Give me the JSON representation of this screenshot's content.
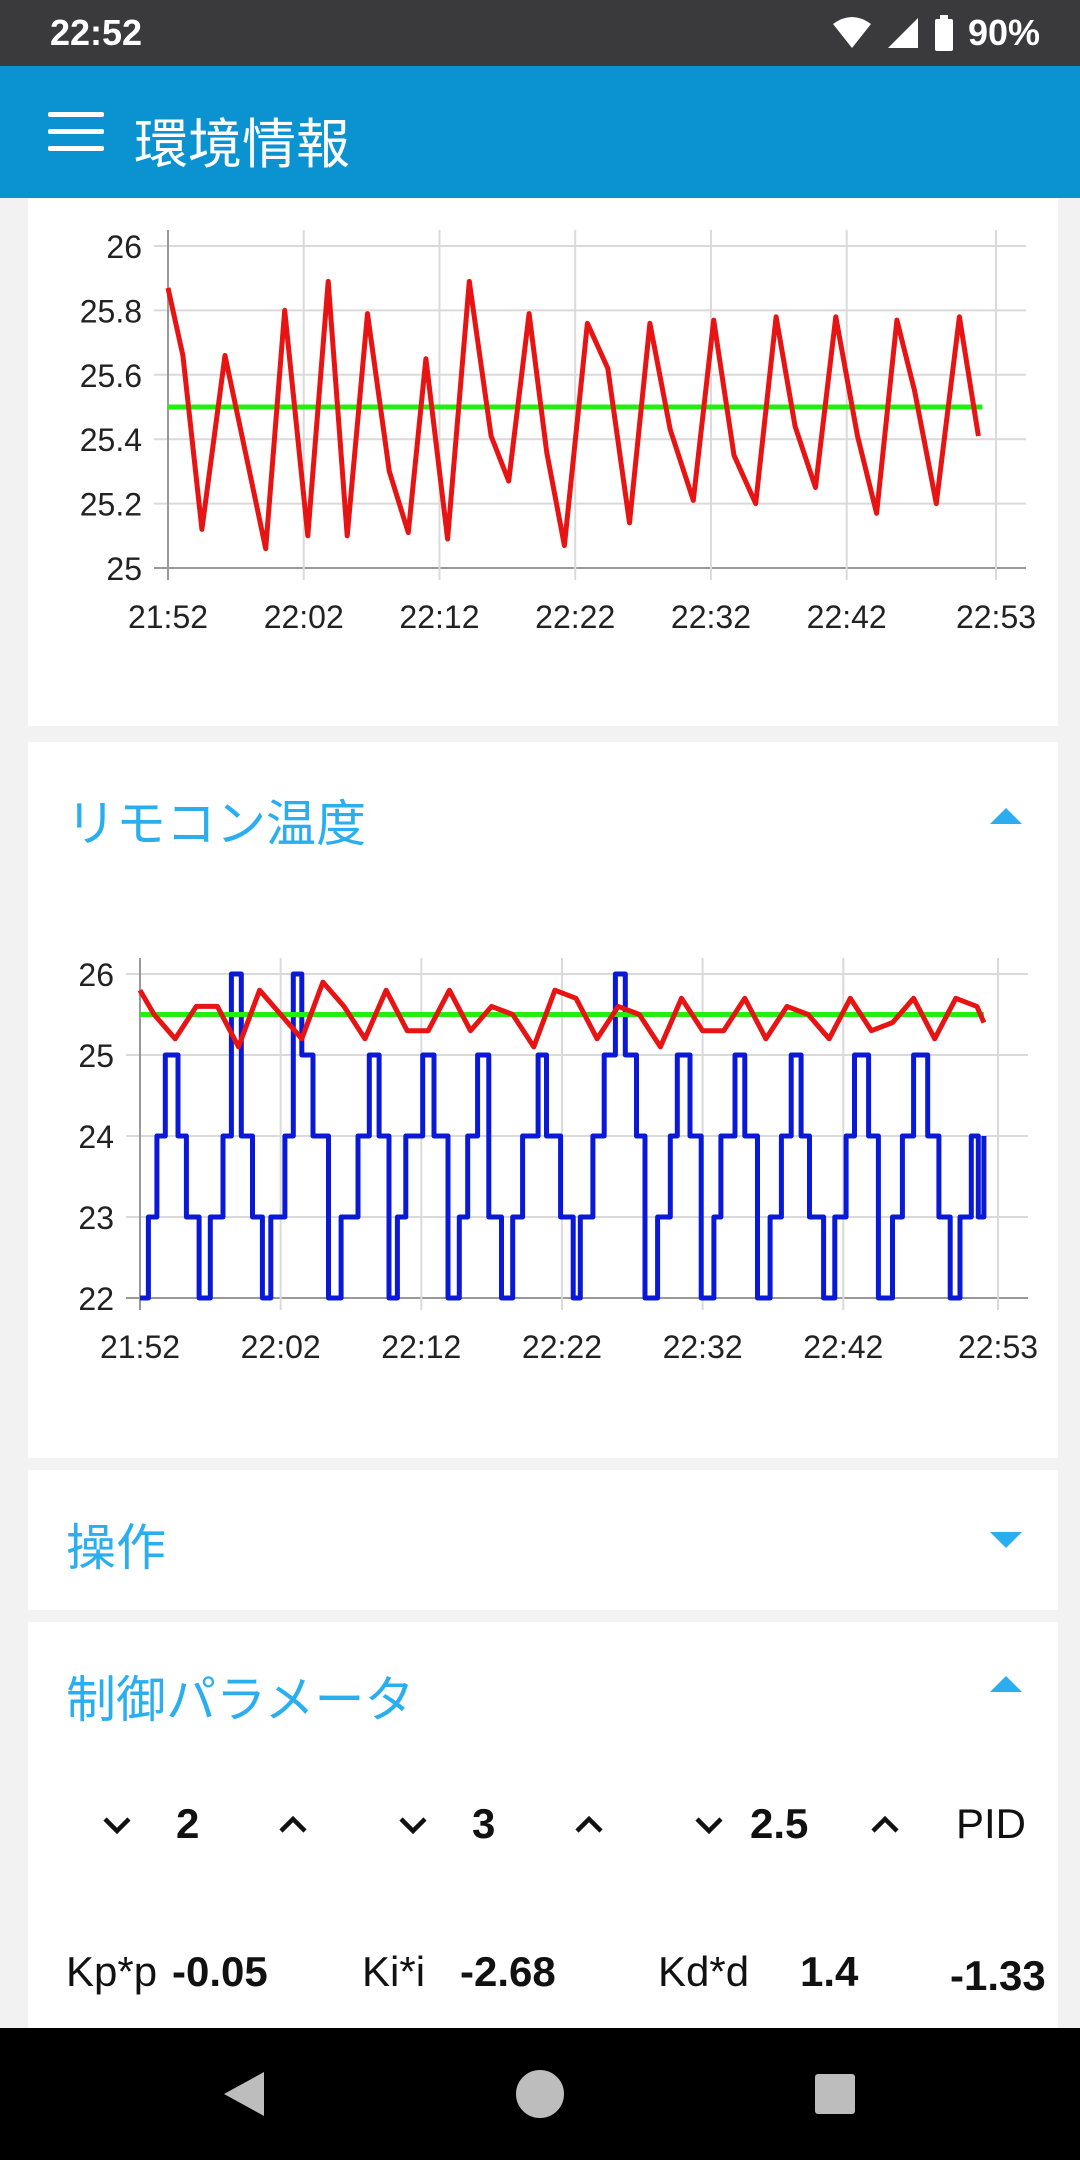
{
  "status_bar": {
    "time": "22:52",
    "battery": "90%",
    "icons": [
      "wifi-icon",
      "signal-icon",
      "battery-icon"
    ]
  },
  "app_bar": {
    "title": "環境情報",
    "menu_icon": "hamburger-menu-icon"
  },
  "cards": {
    "room_temp": {
      "title": ""
    },
    "remote_temp": {
      "title": "リモコン温度"
    },
    "operation": {
      "title": "操作"
    },
    "control_params": {
      "title": "制御パラメータ",
      "kp": "2",
      "ki": "3",
      "kd": "2.5",
      "pid_label": "PID",
      "kp_label": "Kp*p",
      "kp_value": "-0.05",
      "ki_label": "Ki*i",
      "ki_value": "-2.68",
      "kd_label": "Kd*d",
      "kd_value": "1.4",
      "pid_value": "-1.33"
    }
  },
  "colors": {
    "app_bar": "#0a93d0",
    "accent": "#2aaef0",
    "series_red": "#e81313",
    "series_green": "#22ee11",
    "series_blue": "#0a18d8"
  },
  "chart_data": [
    {
      "type": "line",
      "x_tick_labels": [
        "21:52",
        "22:02",
        "22:12",
        "22:22",
        "22:32",
        "22:42",
        "22:53"
      ],
      "y_tick_labels": [
        "25",
        "25.2",
        "25.4",
        "25.6",
        "25.8",
        "26"
      ],
      "ylim": [
        25,
        26
      ],
      "xlim_minutes_from_start": [
        0,
        61
      ],
      "grid": true,
      "series": [
        {
          "color": "#e81313",
          "x": [
            0,
            1.1,
            2.5,
            4.2,
            5.9,
            7.2,
            8.6,
            10.3,
            11.8,
            13.2,
            14.7,
            16.3,
            17.7,
            19.0,
            20.6,
            22.2,
            23.8,
            25.1,
            26.6,
            27.9,
            29.2,
            30.9,
            32.4,
            34.0,
            35.5,
            37.0,
            38.7,
            40.2,
            41.7,
            43.3,
            44.8,
            46.2,
            47.7,
            49.2,
            50.8,
            52.2,
            53.7,
            55.0,
            56.6,
            58.3,
            59.7
          ],
          "y": [
            25.87,
            25.66,
            25.12,
            25.66,
            25.32,
            25.06,
            25.8,
            25.1,
            25.89,
            25.1,
            25.79,
            25.3,
            25.11,
            25.65,
            25.09,
            25.89,
            25.41,
            25.27,
            25.79,
            25.36,
            25.07,
            25.76,
            25.62,
            25.14,
            25.76,
            25.43,
            25.21,
            25.77,
            25.35,
            25.2,
            25.78,
            25.44,
            25.25,
            25.78,
            25.41,
            25.17,
            25.77,
            25.55,
            25.2,
            25.78,
            25.41
          ]
        },
        {
          "color": "#22ee11",
          "x": [
            0,
            60
          ],
          "y": [
            25.5,
            25.5
          ]
        }
      ]
    },
    {
      "type": "line",
      "x_tick_labels": [
        "21:52",
        "22:02",
        "22:12",
        "22:22",
        "22:32",
        "22:42",
        "22:53"
      ],
      "y_tick_labels": [
        "22",
        "23",
        "24",
        "25",
        "26"
      ],
      "ylim": [
        22,
        26
      ],
      "xlim_minutes_from_start": [
        0,
        61
      ],
      "grid": true,
      "series": [
        {
          "color": "#e81313",
          "x": [
            0,
            1,
            2.5,
            4,
            5.5,
            7,
            8.5,
            10,
            11.5,
            13,
            14.5,
            16,
            17.5,
            19,
            20.5,
            22,
            23.5,
            25,
            26.5,
            28,
            29.5,
            31,
            32.5,
            34,
            35.5,
            37,
            38.5,
            40,
            41.5,
            43,
            44.5,
            46,
            47.5,
            49,
            50.5,
            52,
            53.5,
            55,
            56.5,
            58,
            59.5,
            60
          ],
          "y": [
            25.8,
            25.5,
            25.2,
            25.6,
            25.6,
            25.1,
            25.8,
            25.5,
            25.2,
            25.9,
            25.6,
            25.2,
            25.8,
            25.3,
            25.3,
            25.8,
            25.3,
            25.6,
            25.5,
            25.1,
            25.8,
            25.7,
            25.2,
            25.6,
            25.5,
            25.1,
            25.7,
            25.3,
            25.3,
            25.7,
            25.2,
            25.6,
            25.5,
            25.2,
            25.7,
            25.3,
            25.4,
            25.7,
            25.2,
            25.7,
            25.6,
            25.4
          ]
        },
        {
          "color": "#22ee11",
          "x": [
            0,
            60
          ],
          "y": [
            25.5,
            25.5
          ]
        },
        {
          "color": "#0a18d8",
          "step": true,
          "x": [
            0,
            0.6,
            1.2,
            1.8,
            2.7,
            3.3,
            4.2,
            5.0,
            5.9,
            6.5,
            7.2,
            8.0,
            8.7,
            9.3,
            10.3,
            10.9,
            11.5,
            12.3,
            13.4,
            14.3,
            15.5,
            16.3,
            17.0,
            17.7,
            18.3,
            18.9,
            20.1,
            20.9,
            21.9,
            22.7,
            23.3,
            24.0,
            24.8,
            25.7,
            26.5,
            27.2,
            28.3,
            28.9,
            29.9,
            30.8,
            31.3,
            32.2,
            33.0,
            33.8,
            34.5,
            35.3,
            35.9,
            36.8,
            37.7,
            38.2,
            39.1,
            39.9,
            40.8,
            41.3,
            42.3,
            43.0,
            43.9,
            44.8,
            45.6,
            46.3,
            47.0,
            47.6,
            48.6,
            49.4,
            50.2,
            50.8,
            51.8,
            52.5,
            53.5,
            54.2,
            55.0,
            56.0,
            56.8,
            57.6,
            58.3,
            59.1,
            59.6,
            60
          ],
          "y": [
            22,
            23,
            24,
            25,
            24,
            23,
            22,
            23,
            24,
            26,
            24,
            23,
            22,
            23,
            24,
            26,
            25,
            24,
            22,
            23,
            24,
            25,
            24,
            22,
            23,
            24,
            25,
            24,
            22,
            23,
            24,
            25,
            23,
            22,
            23,
            24,
            25,
            24,
            23,
            22,
            23,
            24,
            25,
            26,
            25,
            24,
            22,
            23,
            24,
            25,
            24,
            22,
            23,
            24,
            25,
            24,
            22,
            23,
            24,
            25,
            24,
            23,
            22,
            23,
            24,
            25,
            24,
            22,
            23,
            24,
            25,
            24,
            23,
            22,
            23,
            24,
            23,
            24
          ]
        }
      ]
    }
  ]
}
